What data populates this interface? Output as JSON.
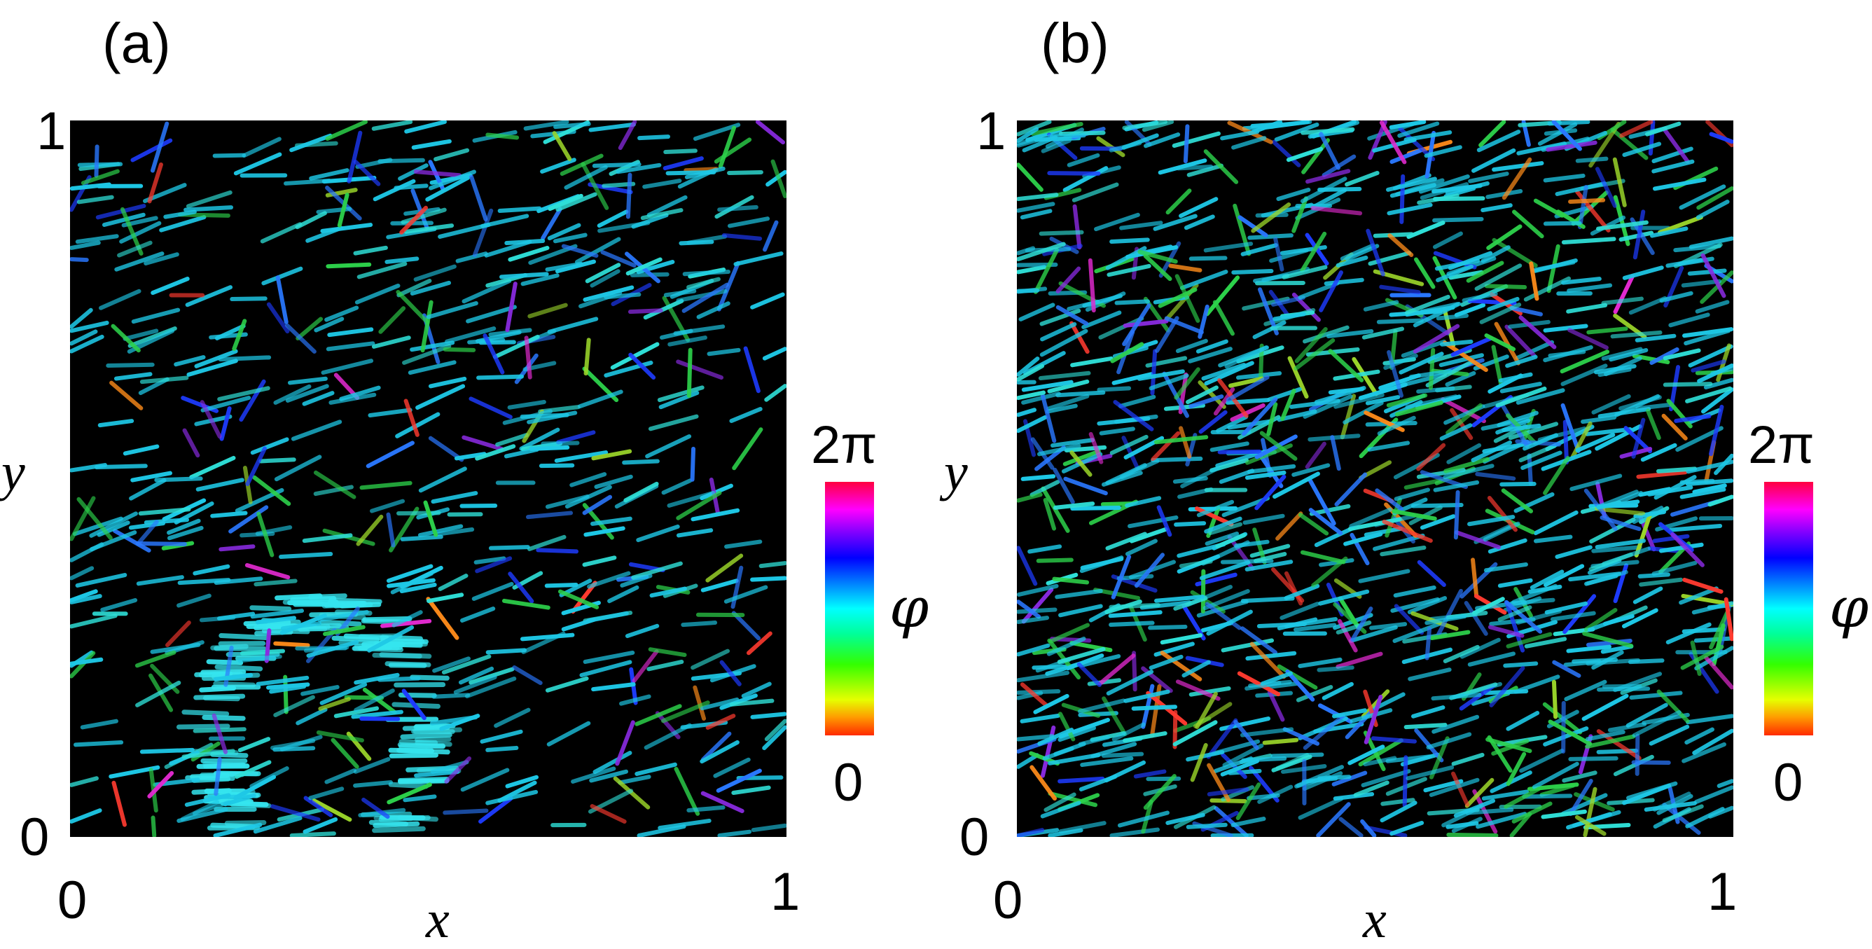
{
  "panels": [
    {
      "label": "(a)",
      "xlabel": "x",
      "ylabel": "y",
      "x_ticks": [
        "0",
        "1"
      ],
      "y_ticks": [
        "0",
        "1"
      ],
      "colorbar": {
        "max_label": "2π",
        "min_label": "0",
        "symbol": "φ"
      },
      "colormap": "hsv-like (red→yellow→green→cyan→blue→purple→magenta→red)",
      "background": "#000000",
      "feature": "ring-shaped cyan cluster near lower-left"
    },
    {
      "label": "(b)",
      "xlabel": "x",
      "ylabel": "y",
      "x_ticks": [
        "0",
        "1"
      ],
      "y_ticks": [
        "0",
        "1"
      ],
      "colorbar": {
        "max_label": "2π",
        "min_label": "0",
        "symbol": "φ"
      },
      "colormap": "hsv-like (red→yellow→green→cyan→blue→purple→magenta→red)",
      "background": "#000000",
      "feature": "dense disordered field, predominantly cyan"
    }
  ],
  "colors": {
    "dominant": "#1ec8e6",
    "accent_green": "#2dd24b",
    "accent_blue": "#1e3cff"
  }
}
